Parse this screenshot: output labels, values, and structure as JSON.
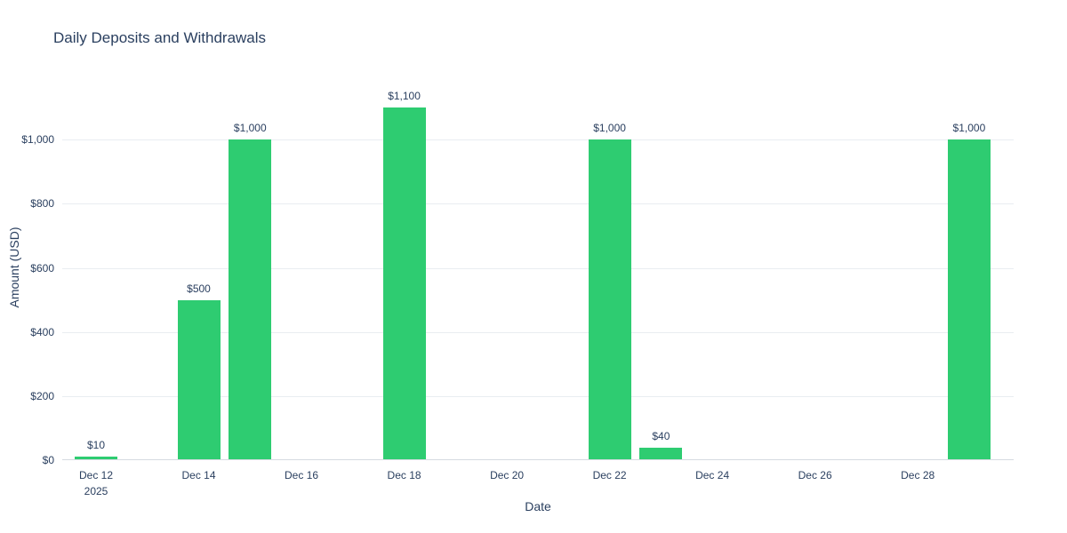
{
  "chart": {
    "title": "Daily Deposits and Withdrawals",
    "xaxis_title": "Date",
    "yaxis_title": "Amount (USD)"
  },
  "chart_data": {
    "type": "bar",
    "title": "Daily Deposits and Withdrawals",
    "xlabel": "Date",
    "ylabel": "Amount (USD)",
    "legend_position": "none",
    "grid": true,
    "bar_color": "#2ecc71",
    "text_color": "#2a3f5f",
    "grid_color": "#e9edf1",
    "zero_line_color": "#d6dbe1",
    "ylim": [
      0,
      1200
    ],
    "points": [
      {
        "date": "Dec 12, 2025",
        "day_offset": 0,
        "value": 10,
        "label": "$10"
      },
      {
        "date": "Dec 14, 2025",
        "day_offset": 2,
        "value": 500,
        "label": "$500"
      },
      {
        "date": "Dec 15, 2025",
        "day_offset": 3,
        "value": 1000,
        "label": "$1,000"
      },
      {
        "date": "Dec 18, 2025",
        "day_offset": 6,
        "value": 1100,
        "label": "$1,100"
      },
      {
        "date": "Dec 22, 2025",
        "day_offset": 10,
        "value": 1000,
        "label": "$1,000"
      },
      {
        "date": "Dec 23, 2025",
        "day_offset": 11,
        "value": 40,
        "label": "$40"
      },
      {
        "date": "Dec 29, 2025",
        "day_offset": 17,
        "value": 1000,
        "label": "$1,000"
      }
    ],
    "xticks": [
      {
        "label": "Dec 12",
        "sub": "2025",
        "day_offset": 0
      },
      {
        "label": "Dec 14",
        "sub": "",
        "day_offset": 2
      },
      {
        "label": "Dec 16",
        "sub": "",
        "day_offset": 4
      },
      {
        "label": "Dec 18",
        "sub": "",
        "day_offset": 6
      },
      {
        "label": "Dec 20",
        "sub": "",
        "day_offset": 8
      },
      {
        "label": "Dec 22",
        "sub": "",
        "day_offset": 10
      },
      {
        "label": "Dec 24",
        "sub": "",
        "day_offset": 12
      },
      {
        "label": "Dec 26",
        "sub": "",
        "day_offset": 14
      },
      {
        "label": "Dec 28",
        "sub": "",
        "day_offset": 16
      }
    ],
    "yticks": [
      {
        "label": "$0",
        "value": 0
      },
      {
        "label": "$200",
        "value": 200
      },
      {
        "label": "$400",
        "value": 400
      },
      {
        "label": "$600",
        "value": 600
      },
      {
        "label": "$800",
        "value": 800
      },
      {
        "label": "$1,000",
        "value": 1000
      }
    ]
  }
}
